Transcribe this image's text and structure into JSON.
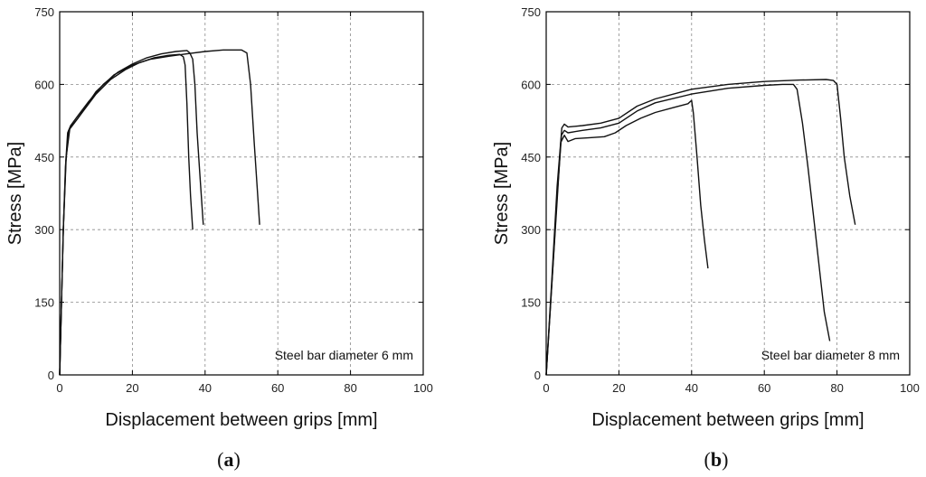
{
  "chart_data": [
    {
      "type": "line",
      "panel_label": "a",
      "xlabel": "Displacement between grips [mm]",
      "ylabel": "Stress [MPa]",
      "xlim": [
        0,
        100
      ],
      "ylim": [
        0,
        750
      ],
      "xticks": [
        0,
        20,
        40,
        60,
        80,
        100
      ],
      "yticks": [
        0,
        150,
        300,
        450,
        600,
        750
      ],
      "grid": true,
      "annotation": "Steel bar diameter 6 mm",
      "annotation_position": "bottom-right",
      "series": [
        {
          "points": [
            [
              0,
              0
            ],
            [
              0.5,
              150
            ],
            [
              1,
              300
            ],
            [
              1.6,
              430
            ],
            [
              2.2,
              500
            ],
            [
              3,
              515
            ],
            [
              5,
              535
            ],
            [
              8,
              565
            ],
            [
              12,
              600
            ],
            [
              16,
              625
            ],
            [
              20,
              642
            ],
            [
              24,
              655
            ],
            [
              28,
              663
            ],
            [
              32,
              668
            ],
            [
              35,
              670
            ],
            [
              35.8,
              665
            ],
            [
              36.6,
              652
            ],
            [
              37.2,
              600
            ],
            [
              37.8,
              500
            ],
            [
              38.5,
              420
            ],
            [
              39.5,
              310
            ]
          ]
        },
        {
          "points": [
            [
              0,
              0
            ],
            [
              0.5,
              150
            ],
            [
              1,
              300
            ],
            [
              1.7,
              440
            ],
            [
              2.5,
              505
            ],
            [
              4,
              520
            ],
            [
              6,
              540
            ],
            [
              10,
              580
            ],
            [
              14,
              610
            ],
            [
              18,
              630
            ],
            [
              22,
              645
            ],
            [
              26,
              655
            ],
            [
              30,
              660
            ],
            [
              33,
              662
            ],
            [
              34,
              657
            ],
            [
              34.5,
              640
            ],
            [
              35,
              560
            ],
            [
              35.5,
              450
            ],
            [
              36,
              370
            ],
            [
              36.6,
              300
            ]
          ]
        },
        {
          "points": [
            [
              0,
              0
            ],
            [
              0.5,
              150
            ],
            [
              1,
              300
            ],
            [
              1.8,
              450
            ],
            [
              2.8,
              510
            ],
            [
              5,
              530
            ],
            [
              10,
              585
            ],
            [
              15,
              620
            ],
            [
              20,
              640
            ],
            [
              25,
              652
            ],
            [
              30,
              658
            ],
            [
              35,
              663
            ],
            [
              40,
              668
            ],
            [
              45,
              671
            ],
            [
              50,
              671
            ],
            [
              51.5,
              665
            ],
            [
              52.5,
              600
            ],
            [
              53.5,
              480
            ],
            [
              54.3,
              390
            ],
            [
              55,
              310
            ]
          ]
        }
      ]
    },
    {
      "type": "line",
      "panel_label": "b",
      "xlabel": "Displacement between grips [mm]",
      "ylabel": "Stress [MPa]",
      "xlim": [
        0,
        100
      ],
      "ylim": [
        0,
        750
      ],
      "xticks": [
        0,
        20,
        40,
        60,
        80,
        100
      ],
      "yticks": [
        0,
        150,
        300,
        450,
        600,
        750
      ],
      "grid": true,
      "annotation": "Steel bar diameter 8 mm",
      "annotation_position": "bottom-right",
      "series": [
        {
          "points": [
            [
              0,
              0
            ],
            [
              1.5,
              180
            ],
            [
              3,
              360
            ],
            [
              4,
              480
            ],
            [
              5,
              495
            ],
            [
              6,
              482
            ],
            [
              8,
              488
            ],
            [
              12,
              490
            ],
            [
              16,
              492
            ],
            [
              19,
              500
            ],
            [
              22,
              515
            ],
            [
              26,
              530
            ],
            [
              30,
              542
            ],
            [
              35,
              552
            ],
            [
              39,
              560
            ],
            [
              40,
              567
            ],
            [
              40.5,
              540
            ],
            [
              41.5,
              450
            ],
            [
              42.5,
              350
            ],
            [
              43.5,
              280
            ],
            [
              44.5,
              220
            ]
          ]
        },
        {
          "points": [
            [
              0,
              0
            ],
            [
              1.5,
              180
            ],
            [
              3,
              370
            ],
            [
              4.2,
              495
            ],
            [
              5,
              505
            ],
            [
              6,
              500
            ],
            [
              10,
              505
            ],
            [
              15,
              510
            ],
            [
              20,
              520
            ],
            [
              25,
              545
            ],
            [
              30,
              562
            ],
            [
              40,
              580
            ],
            [
              50,
              592
            ],
            [
              60,
              598
            ],
            [
              65,
              600
            ],
            [
              68,
              600
            ],
            [
              69,
              590
            ],
            [
              70.5,
              520
            ],
            [
              72,
              430
            ],
            [
              73.5,
              330
            ],
            [
              75,
              230
            ],
            [
              76.5,
              130
            ],
            [
              78,
              70
            ]
          ]
        },
        {
          "points": [
            [
              0,
              0
            ],
            [
              1.5,
              190
            ],
            [
              3,
              390
            ],
            [
              4.3,
              510
            ],
            [
              5,
              518
            ],
            [
              6,
              512
            ],
            [
              10,
              515
            ],
            [
              15,
              520
            ],
            [
              20,
              530
            ],
            [
              25,
              555
            ],
            [
              30,
              570
            ],
            [
              40,
              590
            ],
            [
              50,
              600
            ],
            [
              60,
              606
            ],
            [
              70,
              609
            ],
            [
              77,
              610
            ],
            [
              79,
              608
            ],
            [
              80,
              600
            ],
            [
              81,
              530
            ],
            [
              82,
              450
            ],
            [
              83.5,
              370
            ],
            [
              85,
              310
            ]
          ]
        }
      ]
    }
  ]
}
